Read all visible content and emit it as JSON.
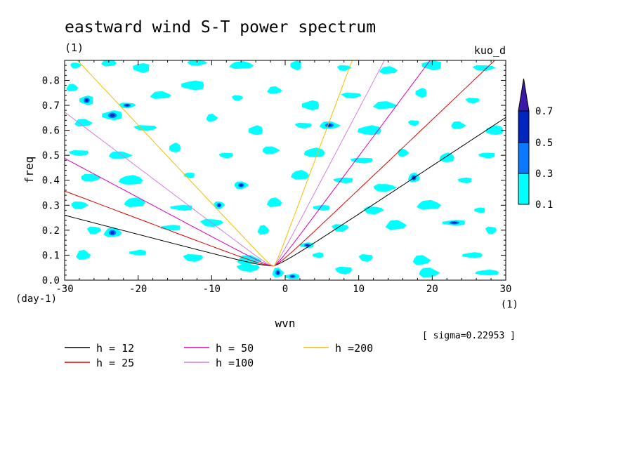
{
  "chart_data": {
    "type": "contour",
    "title": "eastward wind S-T power spectrum",
    "unit_label": "(1)",
    "model_label": "kuo_d",
    "xlabel": "wvn",
    "ylabel": "freq",
    "x_unit": "(1)",
    "y_unit": "(day-1)",
    "xlim": [
      -30,
      30
    ],
    "ylim": [
      0,
      0.88
    ],
    "x_ticks": [
      -30,
      -20,
      -10,
      0,
      10,
      20,
      30
    ],
    "x_tick_labels": [
      "-30",
      "-20",
      "-10",
      "0",
      "10",
      "20",
      "30"
    ],
    "y_ticks": [
      0.0,
      0.1,
      0.2,
      0.3,
      0.4,
      0.5,
      0.6,
      0.7,
      0.8
    ],
    "y_tick_labels": [
      "0.0",
      "0.1",
      "0.2",
      "0.3",
      "0.4",
      "0.5",
      "0.6",
      "0.7",
      "0.8"
    ],
    "sigma_text": "[ sigma=0.22953 ]",
    "contour_levels": [
      0.1,
      0.3,
      0.5,
      0.7
    ],
    "colorbar_labels": [
      "0.7",
      "0.5",
      "0.3",
      "0.1"
    ],
    "colors": {
      "level_0.1": "#00ffff",
      "level_0.3": "#0a78ff",
      "level_0.5": "#0026c0",
      "level_0.7": "#3c1aa8"
    },
    "blobs": [
      {
        "x": -28.5,
        "y": 0.86,
        "level": 1
      },
      {
        "x": -24.0,
        "y": 0.87,
        "level": 1
      },
      {
        "x": -19.5,
        "y": 0.85,
        "level": 1
      },
      {
        "x": -12.0,
        "y": 0.87,
        "level": 1
      },
      {
        "x": -6.0,
        "y": 0.86,
        "level": 1
      },
      {
        "x": 1.5,
        "y": 0.86,
        "level": 1
      },
      {
        "x": 8.0,
        "y": 0.85,
        "level": 1
      },
      {
        "x": 14.0,
        "y": 0.84,
        "level": 1
      },
      {
        "x": 20.0,
        "y": 0.86,
        "level": 1
      },
      {
        "x": 27.0,
        "y": 0.85,
        "level": 1
      },
      {
        "x": -29.0,
        "y": 0.77,
        "level": 1
      },
      {
        "x": -27.0,
        "y": 0.72,
        "level": 2
      },
      {
        "x": -21.5,
        "y": 0.7,
        "level": 2
      },
      {
        "x": -17.0,
        "y": 0.74,
        "level": 1
      },
      {
        "x": -12.5,
        "y": 0.78,
        "level": 1
      },
      {
        "x": -6.5,
        "y": 0.73,
        "level": 1
      },
      {
        "x": -1.5,
        "y": 0.76,
        "level": 1
      },
      {
        "x": 3.5,
        "y": 0.7,
        "level": 1
      },
      {
        "x": 9.0,
        "y": 0.74,
        "level": 1
      },
      {
        "x": 13.5,
        "y": 0.7,
        "level": 1
      },
      {
        "x": 18.5,
        "y": 0.75,
        "level": 1
      },
      {
        "x": 25.5,
        "y": 0.72,
        "level": 1
      },
      {
        "x": -27.5,
        "y": 0.63,
        "level": 1
      },
      {
        "x": -23.5,
        "y": 0.66,
        "level": 2
      },
      {
        "x": -19.0,
        "y": 0.61,
        "level": 1
      },
      {
        "x": -10.0,
        "y": 0.65,
        "level": 1
      },
      {
        "x": -4.0,
        "y": 0.6,
        "level": 1
      },
      {
        "x": 2.5,
        "y": 0.62,
        "level": 1
      },
      {
        "x": 6.0,
        "y": 0.62,
        "level": 2
      },
      {
        "x": 11.5,
        "y": 0.6,
        "level": 1
      },
      {
        "x": 17.5,
        "y": 0.63,
        "level": 1
      },
      {
        "x": 23.5,
        "y": 0.62,
        "level": 1
      },
      {
        "x": 28.5,
        "y": 0.6,
        "level": 1
      },
      {
        "x": -28.0,
        "y": 0.51,
        "level": 1
      },
      {
        "x": -22.5,
        "y": 0.5,
        "level": 1
      },
      {
        "x": -15.0,
        "y": 0.53,
        "level": 1
      },
      {
        "x": -8.0,
        "y": 0.5,
        "level": 1
      },
      {
        "x": -2.0,
        "y": 0.52,
        "level": 1
      },
      {
        "x": 4.0,
        "y": 0.51,
        "level": 1
      },
      {
        "x": 10.5,
        "y": 0.48,
        "level": 1
      },
      {
        "x": 16.0,
        "y": 0.51,
        "level": 1
      },
      {
        "x": 22.0,
        "y": 0.49,
        "level": 1
      },
      {
        "x": 27.5,
        "y": 0.5,
        "level": 1
      },
      {
        "x": -26.5,
        "y": 0.41,
        "level": 1
      },
      {
        "x": -21.0,
        "y": 0.4,
        "level": 1
      },
      {
        "x": -13.0,
        "y": 0.42,
        "level": 1
      },
      {
        "x": -6.0,
        "y": 0.38,
        "level": 2
      },
      {
        "x": 2.0,
        "y": 0.42,
        "level": 1
      },
      {
        "x": 8.0,
        "y": 0.4,
        "level": 1
      },
      {
        "x": 13.5,
        "y": 0.37,
        "level": 1
      },
      {
        "x": 17.5,
        "y": 0.41,
        "level": 2
      },
      {
        "x": 24.5,
        "y": 0.4,
        "level": 1
      },
      {
        "x": -28.0,
        "y": 0.3,
        "level": 1
      },
      {
        "x": -20.5,
        "y": 0.31,
        "level": 1
      },
      {
        "x": -14.0,
        "y": 0.29,
        "level": 1
      },
      {
        "x": -9.0,
        "y": 0.3,
        "level": 2
      },
      {
        "x": -1.5,
        "y": 0.31,
        "level": 1
      },
      {
        "x": 5.0,
        "y": 0.29,
        "level": 1
      },
      {
        "x": 12.0,
        "y": 0.28,
        "level": 1
      },
      {
        "x": 19.5,
        "y": 0.3,
        "level": 1
      },
      {
        "x": 26.5,
        "y": 0.28,
        "level": 1
      },
      {
        "x": -26.0,
        "y": 0.2,
        "level": 1
      },
      {
        "x": -23.5,
        "y": 0.19,
        "level": 2
      },
      {
        "x": -15.5,
        "y": 0.21,
        "level": 1
      },
      {
        "x": -10.0,
        "y": 0.23,
        "level": 1
      },
      {
        "x": -3.0,
        "y": 0.2,
        "level": 1
      },
      {
        "x": 3.0,
        "y": 0.14,
        "level": 2
      },
      {
        "x": 7.5,
        "y": 0.21,
        "level": 1
      },
      {
        "x": 15.0,
        "y": 0.22,
        "level": 1
      },
      {
        "x": 23.0,
        "y": 0.23,
        "level": 2
      },
      {
        "x": 28.0,
        "y": 0.2,
        "level": 1
      },
      {
        "x": -27.5,
        "y": 0.1,
        "level": 1
      },
      {
        "x": -20.0,
        "y": 0.11,
        "level": 1
      },
      {
        "x": -12.5,
        "y": 0.09,
        "level": 1
      },
      {
        "x": -5.0,
        "y": 0.08,
        "level": 1
      },
      {
        "x": 4.5,
        "y": 0.1,
        "level": 1
      },
      {
        "x": 11.0,
        "y": 0.09,
        "level": 1
      },
      {
        "x": 18.5,
        "y": 0.08,
        "level": 1
      },
      {
        "x": 25.5,
        "y": 0.1,
        "level": 1
      },
      {
        "x": -5.0,
        "y": 0.05,
        "level": 1
      },
      {
        "x": -1.0,
        "y": 0.03,
        "level": 2
      },
      {
        "x": 1.0,
        "y": 0.015,
        "level": 2
      },
      {
        "x": 8.0,
        "y": 0.04,
        "level": 1
      },
      {
        "x": 19.5,
        "y": 0.03,
        "level": 1
      },
      {
        "x": 27.5,
        "y": 0.03,
        "level": 1
      }
    ],
    "series": [
      {
        "name": "h = 12",
        "h": 12,
        "color": "#000000"
      },
      {
        "name": "h = 25",
        "h": 25,
        "color": "#e00000"
      },
      {
        "name": "h = 50",
        "h": 50,
        "color": "#dd00b4"
      },
      {
        "name": "h =100",
        "h": 100,
        "color": "#d080d8"
      },
      {
        "name": "h =200",
        "h": 200,
        "color": "#f0c000"
      }
    ]
  }
}
